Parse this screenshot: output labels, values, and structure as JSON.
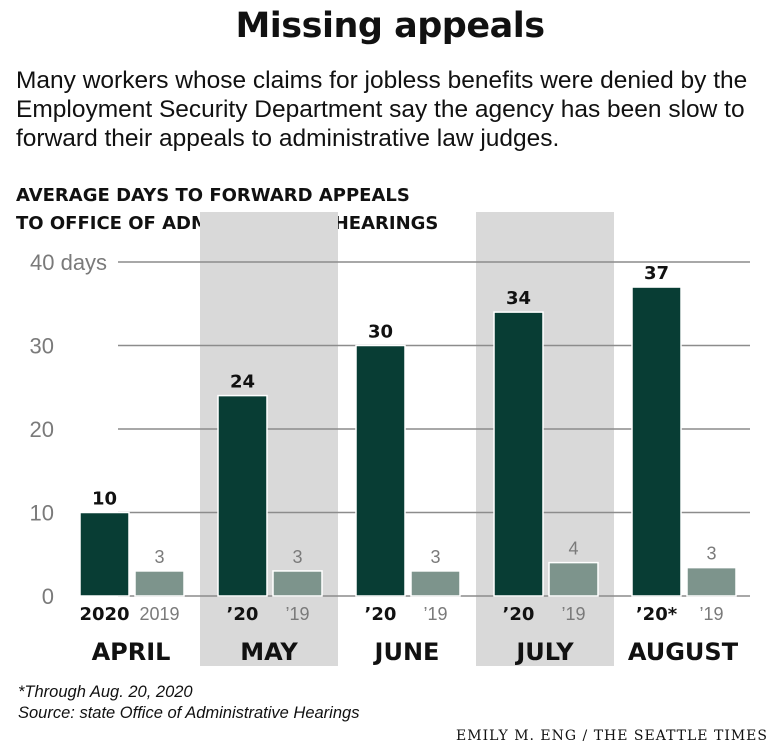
{
  "header": {
    "title": "Missing appeals",
    "subtitle": "Many workers whose claims for jobless benefits were denied by the Employment Security Department say the agency has been slow to forward their appeals to administrative law judges."
  },
  "chart_heading": {
    "line1": "AVERAGE DAYS TO FORWARD APPEALS",
    "line2": "TO OFFICE OF ADMINSTRATIVE HEARINGS"
  },
  "footnote": {
    "note": "*Through Aug. 20, 2020",
    "source": "Source: state Office of Administrative Hearings"
  },
  "credit": "EMILY M. ENG / THE SEATTLE TIMES",
  "colors": {
    "bar_2020": "#083d34",
    "bar_2019": "#7d948c",
    "band": "#d9d9d9",
    "grid": "#8c8c8c",
    "axis_text": "#7a7a7a"
  },
  "chart_data": {
    "type": "bar",
    "title": "AVERAGE DAYS TO FORWARD APPEALS TO OFFICE OF ADMINSTRATIVE HEARINGS",
    "categories": [
      "APRIL",
      "MAY",
      "JUNE",
      "JULY",
      "AUGUST"
    ],
    "shaded_categories": [
      "MAY",
      "JULY"
    ],
    "series": [
      {
        "name": "2020",
        "values": [
          10,
          24,
          30,
          34,
          37
        ],
        "value_labels": [
          "10",
          "24",
          "30",
          "34",
          "37"
        ],
        "tick_labels": [
          "2020",
          "’20",
          "’20",
          "’20",
          "’20*"
        ]
      },
      {
        "name": "2019",
        "values": [
          3,
          3,
          3,
          4,
          3.4
        ],
        "value_labels": [
          "3",
          "3",
          "3",
          "4",
          "3"
        ],
        "tick_labels": [
          "2019",
          "’19",
          "’19",
          "’19",
          "’19"
        ]
      }
    ],
    "y_ticks": [
      {
        "value": 0,
        "label": "0"
      },
      {
        "value": 10,
        "label": "10"
      },
      {
        "value": 20,
        "label": "20"
      },
      {
        "value": 30,
        "label": "30"
      },
      {
        "value": 40,
        "label": "40 days"
      }
    ],
    "ylim": [
      0,
      40
    ],
    "grid": true,
    "legend": "none"
  }
}
